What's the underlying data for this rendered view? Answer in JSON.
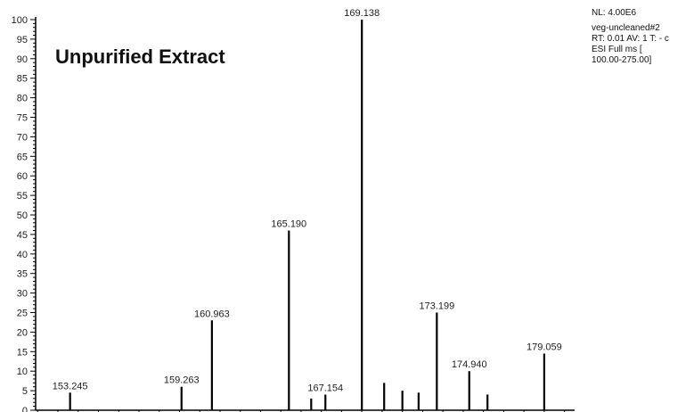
{
  "chart_data": {
    "type": "bar",
    "title": "Unpurified Extract",
    "xlabel": "",
    "ylabel": "",
    "ylim": [
      0,
      100
    ],
    "yticks": [
      0,
      5,
      10,
      15,
      20,
      25,
      30,
      35,
      40,
      45,
      50,
      55,
      60,
      65,
      70,
      75,
      80,
      85,
      90,
      95,
      100
    ],
    "xlim": [
      150.9,
      177.5
    ],
    "peaks": [
      {
        "mz": 152.6,
        "intensity": 4.5,
        "label": "153.245"
      },
      {
        "mz": 158.1,
        "intensity": 6.0,
        "label": "159.263"
      },
      {
        "mz": 159.6,
        "intensity": 23.0,
        "label": "160.963"
      },
      {
        "mz": 163.4,
        "intensity": 46.0,
        "label": "165.190"
      },
      {
        "mz": 164.5,
        "intensity": 3.0,
        "label": ""
      },
      {
        "mz": 165.2,
        "intensity": 4.0,
        "label": "167.154"
      },
      {
        "mz": 167.0,
        "intensity": 100.0,
        "label": "169.138"
      },
      {
        "mz": 168.1,
        "intensity": 7.0,
        "label": ""
      },
      {
        "mz": 169.0,
        "intensity": 5.0,
        "label": ""
      },
      {
        "mz": 169.8,
        "intensity": 4.5,
        "label": ""
      },
      {
        "mz": 170.7,
        "intensity": 25.0,
        "label": "173.199"
      },
      {
        "mz": 172.3,
        "intensity": 10.0,
        "label": "174.940"
      },
      {
        "mz": 173.2,
        "intensity": 4.0,
        "label": ""
      },
      {
        "mz": 176.0,
        "intensity": 14.5,
        "label": "179.059"
      }
    ]
  },
  "info": {
    "line1": "NL: 4.00E6",
    "line2": "veg-uncleaned#2",
    "line3": "RT: 0.01  AV: 1 T: - c",
    "line4": "ESI Full ms [",
    "line5": "100.00-275.00]"
  }
}
